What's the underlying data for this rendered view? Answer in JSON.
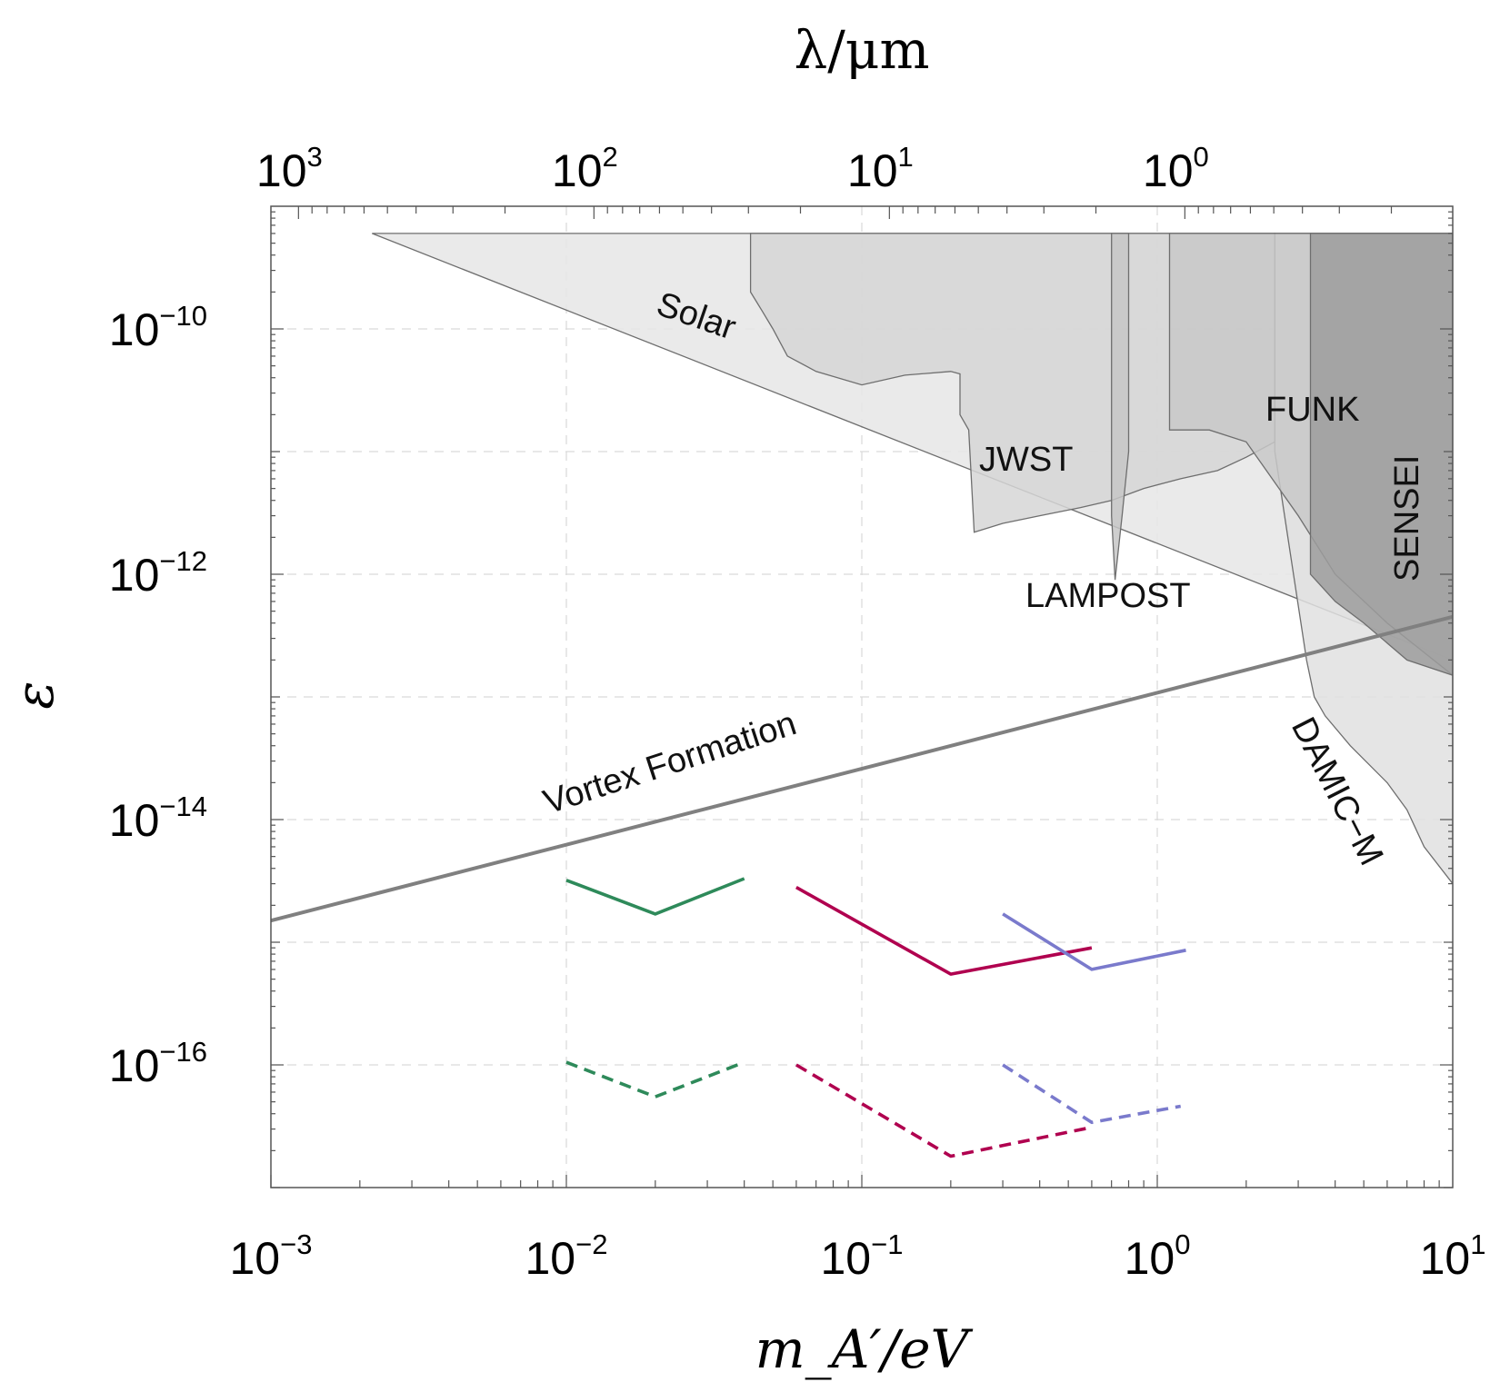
{
  "chart_data": {
    "type": "line",
    "title": "",
    "xlabel": "m_A′/eV",
    "ylabel": "ε",
    "top_xlabel": "λ/μm",
    "xscale": "log",
    "yscale": "log",
    "xlim": [
      0.001,
      10
    ],
    "ylim": [
      1e-17,
      1e-09
    ],
    "grid": true,
    "x_ticks": [
      {
        "value": 0.001,
        "base": "10",
        "exp": "−3"
      },
      {
        "value": 0.01,
        "base": "10",
        "exp": "−2"
      },
      {
        "value": 0.1,
        "base": "10",
        "exp": "−1"
      },
      {
        "value": 1,
        "base": "10",
        "exp": "0"
      },
      {
        "value": 10,
        "base": "10",
        "exp": "1"
      }
    ],
    "y_ticks": [
      {
        "value": 1e-10,
        "base": "10",
        "exp": "−10"
      },
      {
        "value": 1e-12,
        "base": "10",
        "exp": "−12"
      },
      {
        "value": 1e-14,
        "base": "10",
        "exp": "−14"
      },
      {
        "value": 1e-16,
        "base": "10",
        "exp": "−16"
      }
    ],
    "top_ticks": [
      {
        "mass": 0.00124,
        "base": "10",
        "exp": "3"
      },
      {
        "mass": 0.0124,
        "base": "10",
        "exp": "2"
      },
      {
        "mass": 0.124,
        "base": "10",
        "exp": "1"
      },
      {
        "mass": 1.24,
        "base": "10",
        "exp": "0"
      }
    ],
    "regions": [
      {
        "name": "Solar",
        "label": "Solar",
        "color": "#e6e6e6",
        "points": [
          [
            0.0022,
            6e-10
          ],
          [
            10,
            2e-13
          ],
          [
            10,
            6e-10
          ]
        ]
      },
      {
        "name": "DAMIC-M",
        "label": "DAMIC−M",
        "color": "#e0e0e0",
        "points": [
          [
            2.5,
            6e-10
          ],
          [
            2.5,
            1e-11
          ],
          [
            3.2,
            2e-13
          ],
          [
            3.4,
            1e-13
          ],
          [
            3.7,
            7e-14
          ],
          [
            4.5,
            4e-14
          ],
          [
            6,
            2e-14
          ],
          [
            7,
            1.2e-14
          ],
          [
            8,
            6e-15
          ],
          [
            10,
            3e-15
          ],
          [
            10,
            6e-10
          ]
        ]
      },
      {
        "name": "JWST",
        "label": "JWST",
        "color": "#d6d6d6",
        "points": [
          [
            0.042,
            6e-10
          ],
          [
            0.042,
            2e-10
          ],
          [
            0.046,
            1.4e-10
          ],
          [
            0.05,
            1e-10
          ],
          [
            0.056,
            6e-11
          ],
          [
            0.07,
            4.5e-11
          ],
          [
            0.1,
            3.5e-11
          ],
          [
            0.14,
            4.2e-11
          ],
          [
            0.2,
            4.5e-11
          ],
          [
            0.215,
            4.3e-11
          ],
          [
            0.215,
            2e-11
          ],
          [
            0.23,
            1.5e-11
          ],
          [
            0.24,
            2.2e-12
          ],
          [
            0.3,
            2.6e-12
          ],
          [
            0.4,
            3e-12
          ],
          [
            0.55,
            3.5e-12
          ],
          [
            0.7,
            4e-12
          ],
          [
            0.9,
            5e-12
          ],
          [
            1.2,
            6e-12
          ],
          [
            1.6,
            7e-12
          ],
          [
            2.0,
            9e-12
          ],
          [
            2.5,
            1.2e-11
          ],
          [
            2.5,
            6e-10
          ]
        ]
      },
      {
        "name": "LAMPOST",
        "label": "LAMPOST",
        "color": "#c6c6c6",
        "points": [
          [
            0.7,
            6e-10
          ],
          [
            0.7,
            3e-12
          ],
          [
            0.72,
            9e-13
          ],
          [
            0.76,
            3e-12
          ],
          [
            0.8,
            1e-11
          ],
          [
            0.8,
            6e-10
          ]
        ]
      },
      {
        "name": "FUNK",
        "label": "FUNK",
        "color": "#c8c8c8",
        "points": [
          [
            1.1,
            6e-10
          ],
          [
            1.1,
            1.5e-11
          ],
          [
            1.5,
            1.5e-11
          ],
          [
            2.0,
            1.2e-11
          ],
          [
            3,
            3e-12
          ],
          [
            4,
            1e-12
          ],
          [
            6,
            4e-13
          ],
          [
            10,
            1.5e-13
          ],
          [
            10,
            6e-10
          ]
        ]
      },
      {
        "name": "SENSEI",
        "label": "SENSEI",
        "color": "#9c9c9c",
        "points": [
          [
            3.3,
            6e-10
          ],
          [
            3.3,
            1e-12
          ],
          [
            4,
            6e-13
          ],
          [
            5,
            4e-13
          ],
          [
            7,
            2e-13
          ],
          [
            10,
            1.5e-13
          ],
          [
            10,
            6e-10
          ]
        ]
      }
    ],
    "vortex_line": {
      "name": "Vortex Formation",
      "label": "Vortex Formation",
      "color": "#808080",
      "points": [
        [
          0.001,
          1.5e-15
        ],
        [
          10,
          4.5e-13
        ]
      ]
    },
    "projections": [
      {
        "name": "green-solid",
        "color": "#2e8a5a",
        "style": "solid",
        "points": [
          [
            0.01,
            3.2e-15
          ],
          [
            0.02,
            1.7e-15
          ],
          [
            0.04,
            3.3e-15
          ]
        ]
      },
      {
        "name": "green-dashed",
        "color": "#2e8a5a",
        "style": "dashed",
        "points": [
          [
            0.01,
            1.05e-16
          ],
          [
            0.02,
            5.5e-17
          ],
          [
            0.04,
            1.05e-16
          ]
        ]
      },
      {
        "name": "crimson-solid",
        "color": "#b0004f",
        "style": "solid",
        "points": [
          [
            0.06,
            2.8e-15
          ],
          [
            0.2,
            5.5e-16
          ],
          [
            0.6,
            9e-16
          ]
        ]
      },
      {
        "name": "crimson-dashed",
        "color": "#b0004f",
        "style": "dashed",
        "points": [
          [
            0.06,
            1e-16
          ],
          [
            0.2,
            1.8e-17
          ],
          [
            0.6,
            3.1e-17
          ]
        ]
      },
      {
        "name": "blue-solid",
        "color": "#7a7acc",
        "style": "solid",
        "points": [
          [
            0.3,
            1.7e-15
          ],
          [
            0.6,
            6e-16
          ],
          [
            1.25,
            8.6e-16
          ]
        ]
      },
      {
        "name": "blue-dashed",
        "color": "#7a7acc",
        "style": "dashed",
        "points": [
          [
            0.3,
            1e-16
          ],
          [
            0.6,
            3.4e-17
          ],
          [
            1.2,
            4.6e-17
          ]
        ]
      }
    ]
  }
}
